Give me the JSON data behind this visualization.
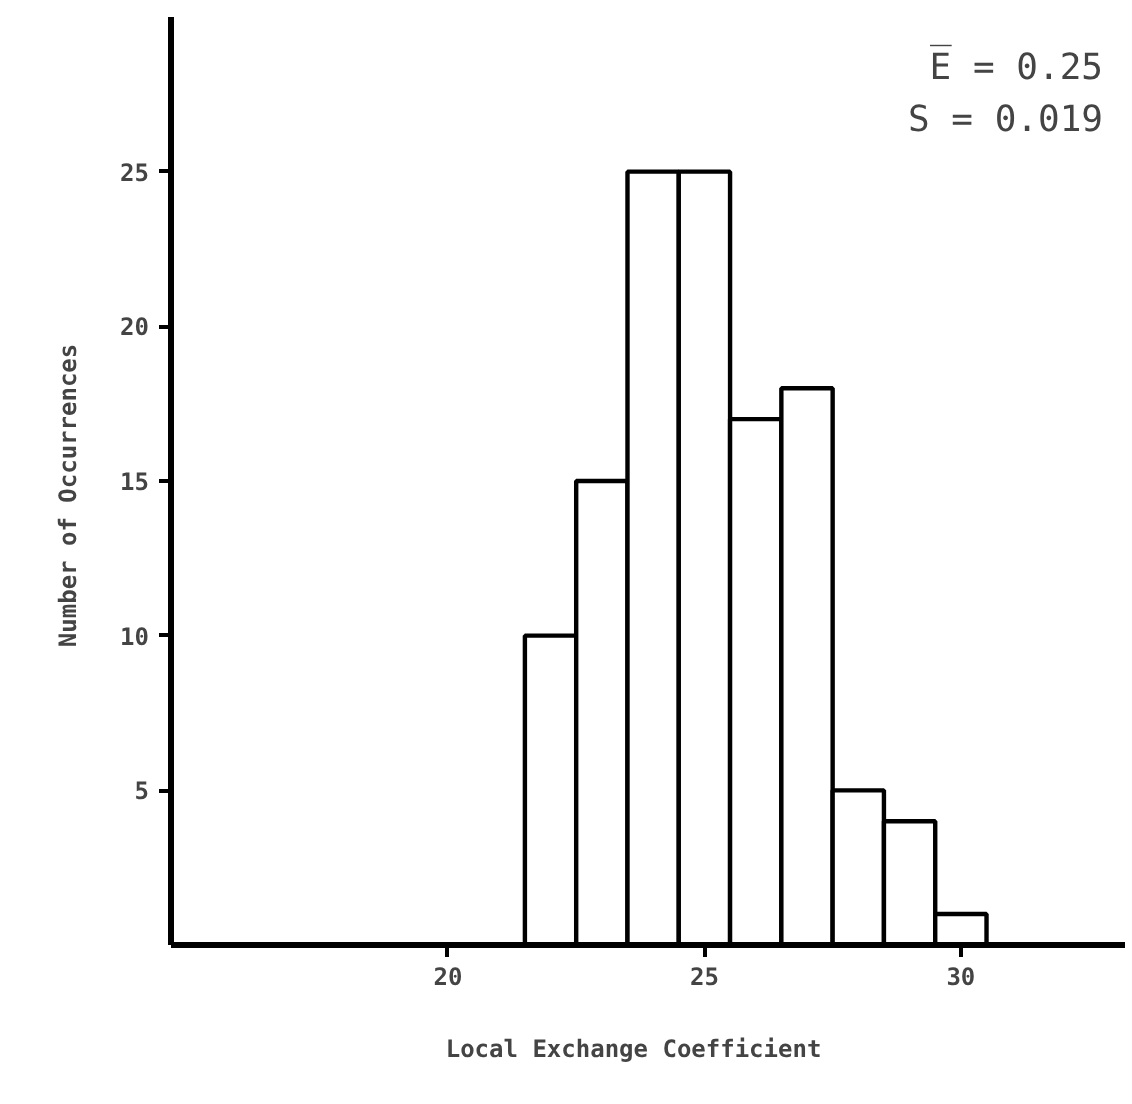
{
  "chart_data": {
    "type": "histogram",
    "xlabel": "Local  Exchange  Coefficient",
    "ylabel": "Number  of  Occurrences",
    "bins": [
      21.5,
      22.5,
      23.5,
      24.5,
      25.5,
      26.5,
      27.5,
      28.5,
      29.5,
      30.5
    ],
    "values": [
      10,
      15,
      25,
      25,
      17,
      18,
      5,
      4,
      1
    ],
    "color": "#ffffff",
    "xlim": [
      14.6,
      33.2
    ],
    "ylim": [
      0,
      30
    ],
    "xticks": [
      20,
      25,
      30
    ],
    "yticks": [
      5,
      10,
      15,
      20,
      25
    ],
    "annotations": [
      "E̅ = 0.25",
      "S = 0.019"
    ],
    "grid": false
  }
}
